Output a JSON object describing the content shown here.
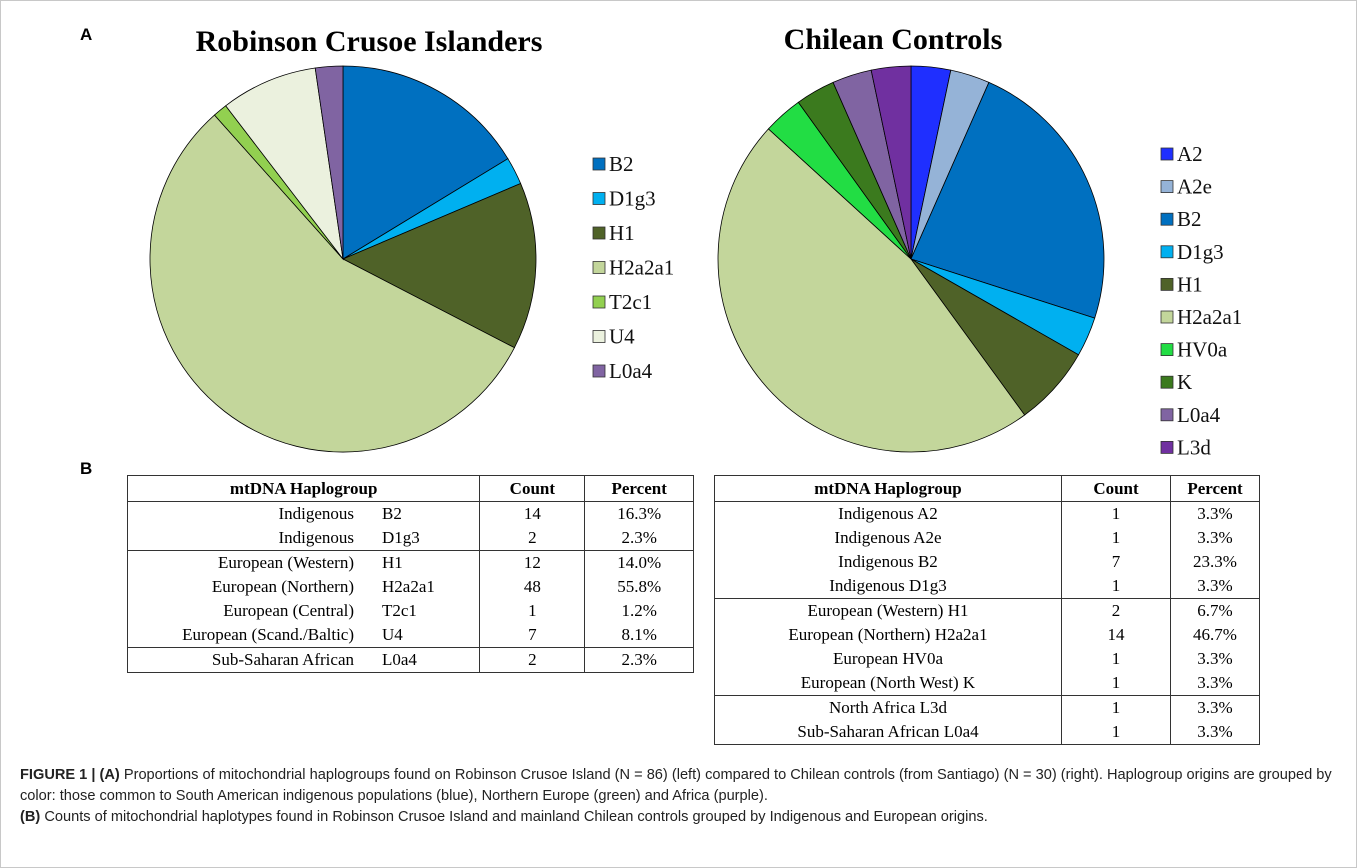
{
  "panel_labels": {
    "a": "A",
    "b": "B"
  },
  "chart_data": [
    {
      "type": "pie",
      "title": "Robinson Crusoe Islanders",
      "categories": [
        "B2",
        "D1g3",
        "H1",
        "H2a2a1",
        "T2c1",
        "U4",
        "L0a4"
      ],
      "values": [
        16.3,
        2.3,
        14.0,
        55.8,
        1.2,
        8.1,
        2.3
      ],
      "colors": [
        "#0070c0",
        "#00b0f0",
        "#4f6228",
        "#c3d69b",
        "#92d050",
        "#ebf1de",
        "#8064a2"
      ],
      "legend": "right"
    },
    {
      "type": "pie",
      "title": "Chilean Controls",
      "categories": [
        "A2",
        "A2e",
        "B2",
        "D1g3",
        "H1",
        "H2a2a1",
        "HV0a",
        "K",
        "L0a4",
        "L3d"
      ],
      "values": [
        3.3,
        3.3,
        23.3,
        3.3,
        6.7,
        46.7,
        3.3,
        3.3,
        3.3,
        3.3
      ],
      "colors": [
        "#1f2fff",
        "#95b3d7",
        "#0070c0",
        "#00b0f0",
        "#4f6228",
        "#c3d69b",
        "#22dd44",
        "#3b7a1e",
        "#8064a2",
        "#7030a0"
      ],
      "legend": "right"
    }
  ],
  "tables": [
    {
      "header": [
        "mtDNA Haplogroup",
        "Count",
        "Percent"
      ],
      "groups": [
        [
          [
            "Indigenous",
            "B2",
            "14",
            "16.3%"
          ],
          [
            "Indigenous",
            "D1g3",
            "2",
            "2.3%"
          ]
        ],
        [
          [
            "European (Western)",
            "H1",
            "12",
            "14.0%"
          ],
          [
            "European (Northern)",
            "H2a2a1",
            "48",
            "55.8%"
          ],
          [
            "European (Central)",
            "T2c1",
            "1",
            "1.2%"
          ],
          [
            "European (Scand./Baltic)",
            "U4",
            "7",
            "8.1%"
          ]
        ],
        [
          [
            "Sub-Saharan African",
            "L0a4",
            "2",
            "2.3%"
          ]
        ]
      ]
    },
    {
      "header": [
        "mtDNA Haplogroup",
        "Count",
        "Percent"
      ],
      "groups": [
        [
          [
            "Indigenous A2",
            "1",
            "3.3%"
          ],
          [
            "Indigenous A2e",
            "1",
            "3.3%"
          ],
          [
            "Indigenous B2",
            "7",
            "23.3%"
          ],
          [
            "Indigenous D1g3",
            "1",
            "3.3%"
          ]
        ],
        [
          [
            "European (Western) H1",
            "2",
            "6.7%"
          ],
          [
            "European (Northern) H2a2a1",
            "14",
            "46.7%"
          ],
          [
            "European HV0a",
            "1",
            "3.3%"
          ],
          [
            "European (North West) K",
            "1",
            "3.3%"
          ]
        ],
        [
          [
            "North Africa L3d",
            "1",
            "3.3%"
          ],
          [
            "Sub-Saharan African L0a4",
            "1",
            "3.3%"
          ]
        ]
      ]
    }
  ],
  "caption": {
    "figure_label": "FIGURE 1 |",
    "part_a_label": "(A)",
    "part_a_text": "Proportions of mitochondrial haplogroups found on Robinson Crusoe Island (N = 86) (left) compared to Chilean controls (from Santiago) (N = 30) (right). Haplogroup origins are grouped by color: those common to South American indigenous populations (blue), Northern Europe (green) and Africa (purple).",
    "part_b_label": "(B)",
    "part_b_text": "Counts of mitochondrial haplotypes found in Robinson Crusoe Island and mainland Chilean controls grouped by Indigenous and European origins."
  }
}
